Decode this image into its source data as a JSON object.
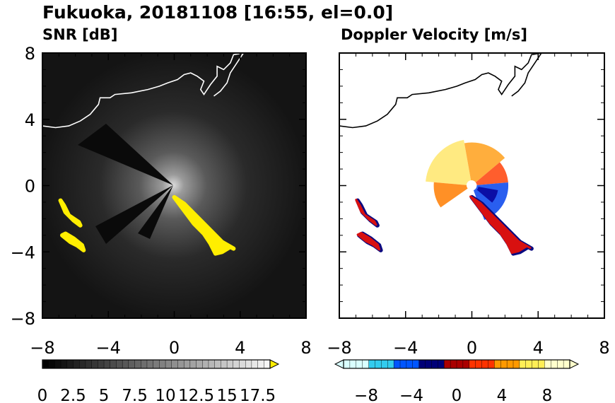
{
  "figure": {
    "title": "Fukuoka, 20181108 [16:55, el=0.0]"
  },
  "chart_data": [
    {
      "type": "heatmap",
      "title": "SNR [dB]",
      "xlabel": "",
      "ylabel": "",
      "xlim": [
        -8,
        8
      ],
      "ylim": [
        -8,
        8
      ],
      "xticks": [
        -8,
        -4,
        0,
        4,
        8
      ],
      "yticks": [
        8,
        4,
        0,
        -4,
        -8
      ],
      "xtick_labels": [
        "−8",
        "−4",
        "0",
        "4",
        "8"
      ],
      "ytick_labels": [
        "8",
        "4",
        "0",
        "−4",
        "−8"
      ],
      "colorbar": {
        "min": 0,
        "max": 18.5,
        "extend": "max",
        "ticks": [
          0,
          2.5,
          5,
          7.5,
          10,
          12.5,
          15,
          17.5
        ],
        "tick_labels": [
          "0",
          "2.5",
          "5",
          "7.5",
          "10",
          "12.5",
          "15",
          "17.5"
        ],
        "colors": [
          "#000000",
          "#ffffff",
          "#ffee00"
        ]
      },
      "high_echo_regions": [
        {
          "points": [
            [
              -6.9,
              -0.9
            ],
            [
              -6.6,
              -1.6
            ],
            [
              -6.1,
              -2.1
            ],
            [
              -5.7,
              -2.4
            ],
            [
              -5.8,
              -2.2
            ],
            [
              -6.4,
              -1.8
            ],
            [
              -6.7,
              -1.2
            ]
          ]
        },
        {
          "points": [
            [
              -6.8,
              -3.0
            ],
            [
              -6.3,
              -3.4
            ],
            [
              -5.9,
              -3.6
            ],
            [
              -5.5,
              -3.9
            ],
            [
              -5.6,
              -3.6
            ],
            [
              -6.1,
              -3.2
            ],
            [
              -6.6,
              -2.9
            ]
          ]
        },
        {
          "points": [
            [
              0.0,
              -0.7
            ],
            [
              0.6,
              -1.5
            ],
            [
              1.2,
              -2.3
            ],
            [
              1.8,
              -2.9
            ],
            [
              2.2,
              -3.5
            ],
            [
              2.5,
              -4.1
            ],
            [
              2.9,
              -4.0
            ],
            [
              3.4,
              -3.7
            ],
            [
              3.6,
              -3.8
            ],
            [
              2.9,
              -3.4
            ],
            [
              2.3,
              -2.8
            ],
            [
              1.5,
              -2.0
            ],
            [
              0.6,
              -1.1
            ]
          ]
        }
      ]
    },
    {
      "type": "heatmap",
      "title": "Doppler Velocity [m/s]",
      "xlabel": "",
      "ylabel": "",
      "xlim": [
        -8,
        8
      ],
      "ylim": [
        -8,
        8
      ],
      "xticks": [
        -8,
        -4,
        0,
        4,
        8
      ],
      "yticks": [
        8,
        4,
        0,
        -4,
        -8
      ],
      "xtick_labels": [
        "−8",
        "−4",
        "0",
        "4",
        "8"
      ],
      "ytick_labels": [
        "",
        "",
        "",
        "",
        ""
      ],
      "colorbar": {
        "min": -10,
        "max": 10,
        "extend": "both",
        "ticks": [
          -8,
          -4,
          0,
          4,
          8
        ],
        "tick_labels": [
          "−8",
          "−4",
          "0",
          "4",
          "8"
        ],
        "colors": [
          "#d9ffff",
          "#33ccee",
          "#0055ff",
          "#000077",
          "#aa0000",
          "#ff3300",
          "#ff9900",
          "#ffee55",
          "#ffffcc"
        ]
      },
      "velocity_sectors": [
        {
          "from_deg": 100,
          "to_deg": 175,
          "rmin": 0.3,
          "rmax": 2.8,
          "color": "#ffe97a"
        },
        {
          "from_deg": 40,
          "to_deg": 100,
          "rmin": 0.3,
          "rmax": 2.6,
          "color": "#ffaa33"
        },
        {
          "from_deg": 5,
          "to_deg": 40,
          "rmin": 0.3,
          "rmax": 2.2,
          "color": "#ff5522"
        },
        {
          "from_deg": 175,
          "to_deg": 215,
          "rmin": 0.3,
          "rmax": 2.3,
          "color": "#ff8a1a"
        },
        {
          "from_deg": -70,
          "to_deg": 5,
          "rmin": 0.3,
          "rmax": 2.2,
          "color": "#1e55ee"
        },
        {
          "from_deg": -40,
          "to_deg": -10,
          "rmin": 0.4,
          "rmax": 1.6,
          "color": "#0a0aa0"
        }
      ]
    }
  ],
  "coastline": [
    [
      -8,
      3.6
    ],
    [
      -7.2,
      3.5
    ],
    [
      -6.4,
      3.6
    ],
    [
      -5.7,
      3.9
    ],
    [
      -5.1,
      4.3
    ],
    [
      -4.6,
      4.9
    ],
    [
      -4.5,
      5.3
    ],
    [
      -3.9,
      5.3
    ],
    [
      -3.6,
      5.5
    ],
    [
      -2.6,
      5.6
    ],
    [
      -1.6,
      5.8
    ],
    [
      -0.9,
      6.0
    ],
    [
      -0.4,
      6.2
    ],
    [
      0.2,
      6.4
    ],
    [
      0.6,
      6.7
    ],
    [
      1.0,
      6.8
    ],
    [
      1.4,
      6.6
    ],
    [
      1.8,
      6.3
    ],
    [
      1.6,
      5.8
    ],
    [
      1.8,
      5.5
    ],
    [
      2.2,
      6.1
    ],
    [
      2.6,
      6.6
    ],
    [
      2.6,
      7.2
    ],
    [
      3.0,
      7.0
    ],
    [
      3.4,
      7.4
    ],
    [
      3.6,
      7.9
    ],
    [
      4.2,
      8.0
    ],
    [
      3.8,
      7.4
    ],
    [
      3.4,
      6.8
    ],
    [
      3.2,
      6.2
    ],
    [
      2.8,
      5.7
    ],
    [
      2.4,
      5.4
    ]
  ]
}
